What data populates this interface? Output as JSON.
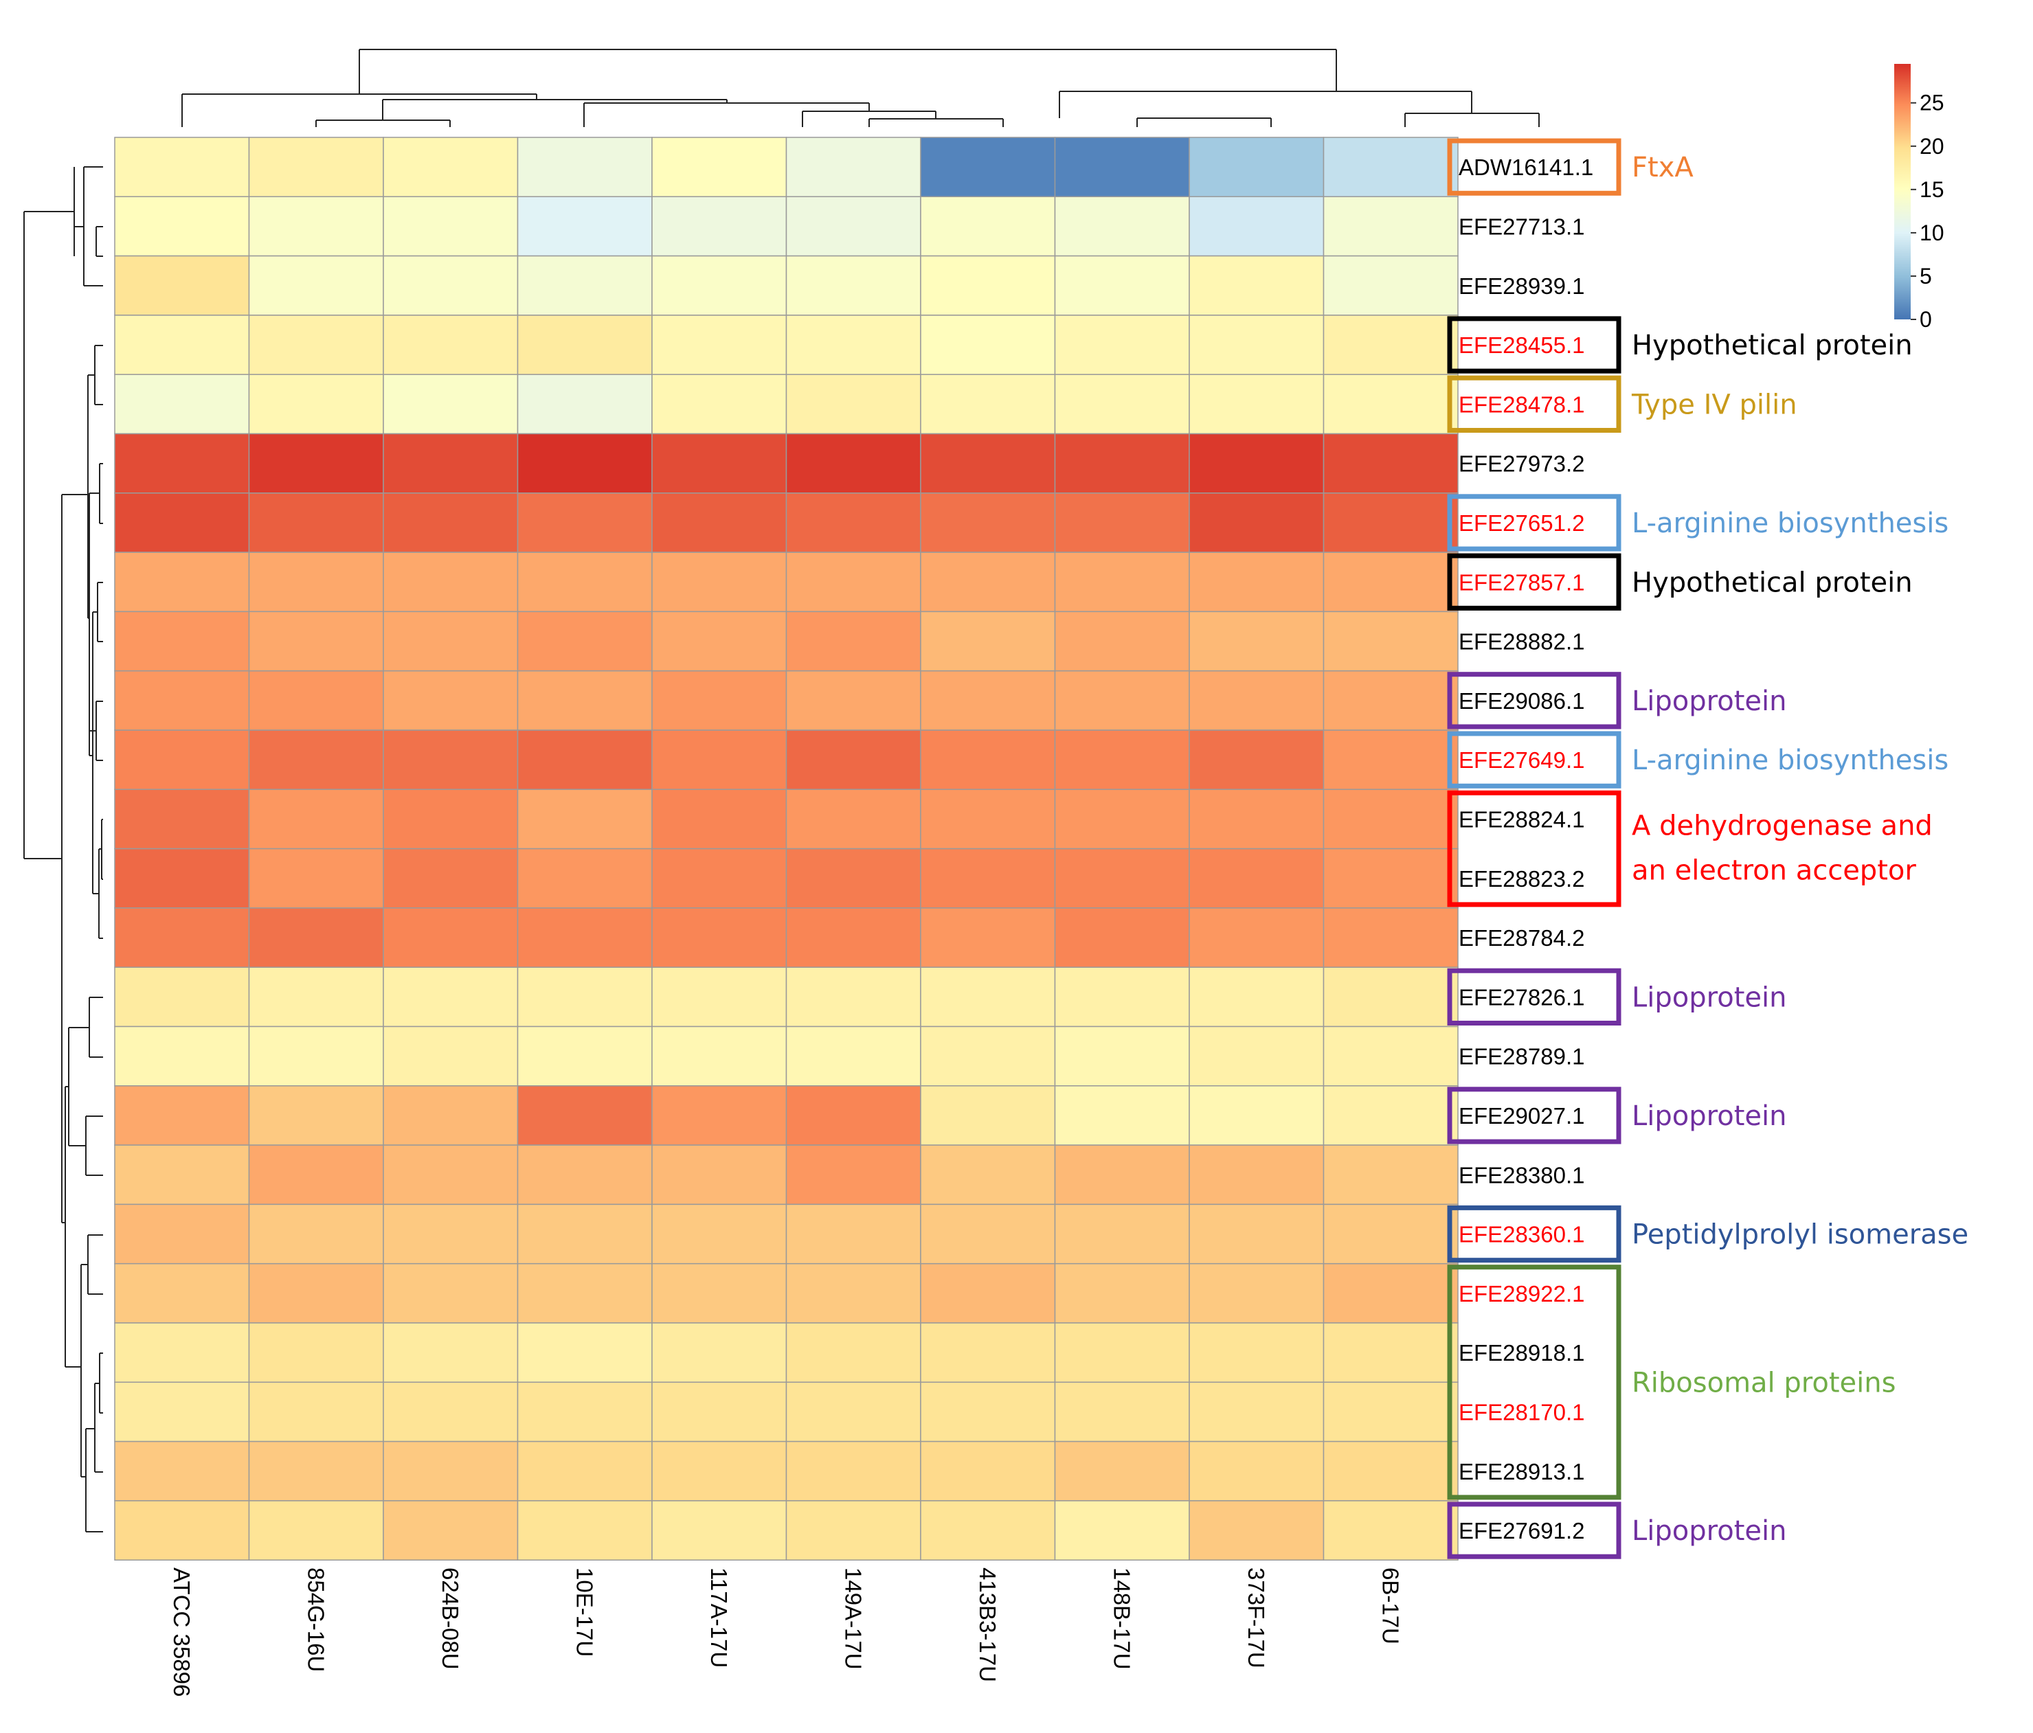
{
  "chart_data": {
    "type": "heatmap",
    "title": "",
    "columns": [
      "ATCC 35896",
      "854G-16U",
      "624B-08U",
      "10E-17U",
      "117A-17U",
      "149A-17U",
      "413B3-17U",
      "148B-17U",
      "373F-17U",
      "6B-17U"
    ],
    "rows": [
      {
        "id": "ADW16141.1",
        "highlight": false,
        "values": [
          16,
          17,
          16,
          12,
          15,
          12,
          1,
          1,
          6,
          8
        ]
      },
      {
        "id": "EFE27713.1",
        "highlight": false,
        "values": [
          15,
          14,
          14,
          10,
          12,
          12,
          14,
          13,
          9,
          13
        ]
      },
      {
        "id": "EFE28939.1",
        "highlight": false,
        "values": [
          19,
          14,
          14,
          13,
          14,
          14,
          15,
          14,
          16,
          13
        ]
      },
      {
        "id": "EFE28455.1",
        "highlight": true,
        "values": [
          16,
          17,
          17,
          18,
          16,
          16,
          15,
          16,
          16,
          17
        ]
      },
      {
        "id": "EFE28478.1",
        "highlight": true,
        "values": [
          13,
          16,
          14,
          12,
          16,
          17,
          16,
          16,
          16,
          16
        ]
      },
      {
        "id": "EFE27973.2",
        "highlight": false,
        "values": [
          28,
          29,
          28,
          29.5,
          28,
          29,
          28,
          28,
          29,
          28
        ]
      },
      {
        "id": "EFE27651.2",
        "highlight": true,
        "values": [
          28,
          27,
          27,
          26,
          27,
          26.5,
          26,
          26,
          28,
          27
        ]
      },
      {
        "id": "EFE27857.1",
        "highlight": true,
        "values": [
          23,
          23,
          23,
          23,
          23,
          23,
          23,
          23,
          23,
          23
        ]
      },
      {
        "id": "EFE28882.1",
        "highlight": false,
        "values": [
          24,
          23,
          23,
          24,
          23,
          24,
          22,
          23,
          22,
          22
        ]
      },
      {
        "id": "EFE29086.1",
        "highlight": false,
        "values": [
          24,
          24,
          23,
          23,
          24,
          23,
          23,
          23,
          23,
          23
        ]
      },
      {
        "id": "EFE27649.1",
        "highlight": true,
        "values": [
          25,
          26,
          26,
          26.5,
          25,
          26.5,
          25,
          25,
          26,
          24
        ]
      },
      {
        "id": "EFE28824.1",
        "highlight": false,
        "values": [
          26,
          24,
          25,
          23,
          25,
          24,
          24,
          24,
          24,
          24
        ]
      },
      {
        "id": "EFE28823.2",
        "highlight": false,
        "values": [
          26.5,
          24,
          25.5,
          24,
          25,
          25.5,
          25,
          25,
          25,
          24
        ]
      },
      {
        "id": "EFE28784.2",
        "highlight": false,
        "values": [
          25.5,
          26,
          25,
          25,
          25,
          25,
          24,
          25,
          24,
          24
        ]
      },
      {
        "id": "EFE27826.1",
        "highlight": false,
        "values": [
          18,
          17,
          17,
          17,
          17,
          17,
          17,
          17,
          17,
          18
        ]
      },
      {
        "id": "EFE28789.1",
        "highlight": false,
        "values": [
          16,
          16,
          17,
          16,
          16,
          16,
          17,
          16,
          17,
          17
        ]
      },
      {
        "id": "EFE29027.1",
        "highlight": false,
        "values": [
          23,
          21,
          22,
          26,
          24,
          25,
          18,
          16,
          16,
          17
        ]
      },
      {
        "id": "EFE28380.1",
        "highlight": false,
        "values": [
          21,
          23,
          22,
          22,
          22,
          24,
          21,
          22,
          22,
          21
        ]
      },
      {
        "id": "EFE28360.1",
        "highlight": true,
        "values": [
          22,
          21,
          21,
          21,
          21,
          21,
          21,
          21,
          21,
          21
        ]
      },
      {
        "id": "EFE28922.1",
        "highlight": true,
        "values": [
          21,
          22,
          21,
          21,
          21,
          21,
          22,
          21,
          21,
          22
        ]
      },
      {
        "id": "EFE28918.1",
        "highlight": false,
        "values": [
          18,
          19,
          18,
          17,
          18,
          19,
          19,
          19,
          19,
          19
        ]
      },
      {
        "id": "EFE28170.1",
        "highlight": true,
        "values": [
          18,
          19,
          19,
          19,
          19,
          19,
          19,
          19,
          19,
          19
        ]
      },
      {
        "id": "EFE28913.1",
        "highlight": false,
        "values": [
          21,
          21,
          21,
          20,
          20,
          20,
          20,
          21,
          20,
          20
        ]
      },
      {
        "id": "EFE27691.2",
        "highlight": false,
        "values": [
          20,
          19,
          21,
          19,
          18,
          19,
          19,
          17,
          21,
          19
        ]
      }
    ],
    "colorbar": {
      "min": 0,
      "max": 29.5,
      "ticks": [
        0,
        5,
        10,
        15,
        20,
        25
      ]
    },
    "colormap": [
      "#4575b4",
      "#91bfdb",
      "#e0f3f8",
      "#ffffbf",
      "#fee090",
      "#fc8d59",
      "#d73027"
    ],
    "annotations": [
      {
        "label": "FtxA",
        "color": "#f07f33",
        "box_color": "#f07f33",
        "rows": [
          0,
          0
        ]
      },
      {
        "label": "Hypothetical protein",
        "color": "#000000",
        "box_color": "#000000",
        "rows": [
          3,
          3
        ]
      },
      {
        "label": "Type IV pilin",
        "color": "#c99a1a",
        "box_color": "#c99a1a",
        "rows": [
          4,
          4
        ]
      },
      {
        "label": "L-arginine biosynthesis",
        "color": "#5b9bd5",
        "box_color": "#5b9bd5",
        "rows": [
          6,
          6
        ]
      },
      {
        "label": "Hypothetical protein",
        "color": "#000000",
        "box_color": "#000000",
        "rows": [
          7,
          7
        ]
      },
      {
        "label": "Lipoprotein",
        "color": "#7030a0",
        "box_color": "#7030a0",
        "rows": [
          9,
          9
        ]
      },
      {
        "label": "L-arginine biosynthesis",
        "color": "#5b9bd5",
        "box_color": "#5b9bd5",
        "rows": [
          10,
          10
        ]
      },
      {
        "label": "A dehydrogenase and",
        "label2": "an electron acceptor",
        "color": "#ff0000",
        "box_color": "#ff0000",
        "rows": [
          11,
          12
        ]
      },
      {
        "label": "Lipoprotein",
        "color": "#7030a0",
        "box_color": "#7030a0",
        "rows": [
          14,
          14
        ]
      },
      {
        "label": "Lipoprotein",
        "color": "#7030a0",
        "box_color": "#7030a0",
        "rows": [
          16,
          16
        ]
      },
      {
        "label": "Peptidylprolyl isomerase",
        "color": "#2f5597",
        "box_color": "#2f5597",
        "rows": [
          18,
          18
        ]
      },
      {
        "label": "Ribosomal proteins",
        "color": "#70ad47",
        "box_color": "#548235",
        "rows": [
          19,
          22
        ]
      },
      {
        "label": "Lipoprotein",
        "color": "#7030a0",
        "box_color": "#7030a0",
        "rows": [
          23,
          23
        ]
      }
    ]
  }
}
